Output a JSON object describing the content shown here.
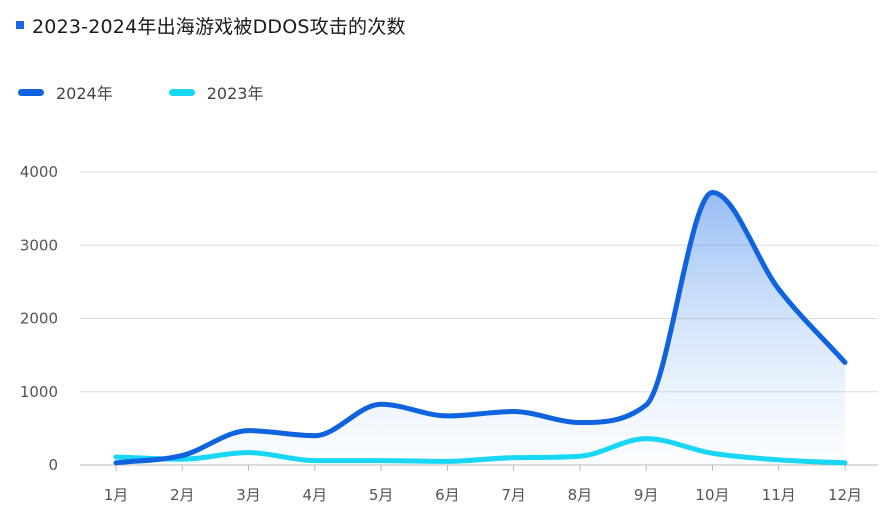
{
  "colors": {
    "marker": "#1a66e0",
    "grid": "#dddddd",
    "axis": "#b8b8b8"
  },
  "chart_data": {
    "type": "line",
    "title": "2023-2024年出海游戏被DDOS攻击的次数",
    "categories": [
      "1月",
      "2月",
      "3月",
      "4月",
      "5月",
      "6月",
      "7月",
      "8月",
      "9月",
      "10月",
      "11月",
      "12月"
    ],
    "ylim": [
      0,
      4000
    ],
    "yticks": [
      "0",
      "1000",
      "2000",
      "3000",
      "4000"
    ],
    "grid": true,
    "legend_position": "top-left",
    "series": [
      {
        "name": "2024年",
        "color": "#0f63df",
        "values": [
          30,
          130,
          470,
          400,
          830,
          670,
          730,
          580,
          820,
          3720,
          2400,
          1400
        ],
        "area_fill": true
      },
      {
        "name": "2023年",
        "color": "#18d6f5",
        "values": [
          110,
          80,
          170,
          60,
          60,
          50,
          100,
          120,
          360,
          160,
          70,
          30
        ],
        "area_fill": false
      }
    ]
  }
}
